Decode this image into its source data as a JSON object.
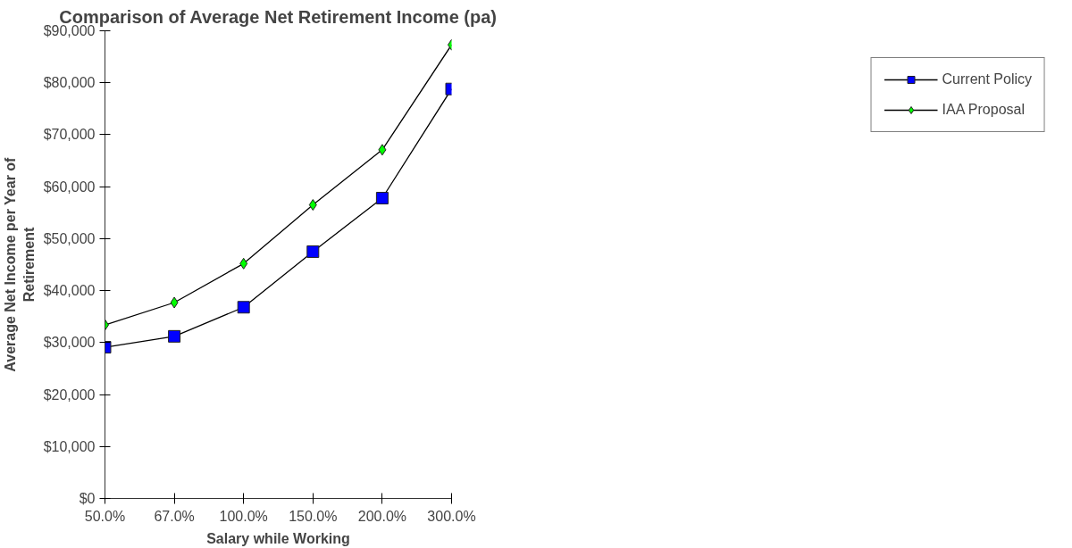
{
  "chart_data": {
    "type": "line",
    "title": "Comparison of Average Net Retirement Income (pa)",
    "xlabel": "Salary while Working",
    "ylabel": "Average Net Income per Year of\nRetirement",
    "categories": [
      "50.0%",
      "67.0%",
      "100.0%",
      "150.0%",
      "200.0%",
      "300.0%"
    ],
    "series": [
      {
        "name": "Current Policy",
        "color": "#0000ff",
        "marker": "square",
        "values": [
          29100,
          31200,
          36800,
          47500,
          57800,
          78800
        ]
      },
      {
        "name": "IAA Proposal",
        "color": "#00ff00",
        "marker": "diamond",
        "values": [
          33400,
          37700,
          45200,
          56500,
          67100,
          87300
        ]
      }
    ],
    "ylim": [
      0,
      90000
    ],
    "yticks": [
      {
        "value": 0,
        "label": "$0"
      },
      {
        "value": 10000,
        "label": "$10,000"
      },
      {
        "value": 20000,
        "label": "$20,000"
      },
      {
        "value": 30000,
        "label": "$30,000"
      },
      {
        "value": 40000,
        "label": "$40,000"
      },
      {
        "value": 50000,
        "label": "$50,000"
      },
      {
        "value": 60000,
        "label": "$60,000"
      },
      {
        "value": 70000,
        "label": "$70,000"
      },
      {
        "value": 80000,
        "label": "$80,000"
      },
      {
        "value": 90000,
        "label": "$90,000"
      }
    ],
    "grid": false,
    "legend": "right",
    "line_style": "solid"
  }
}
